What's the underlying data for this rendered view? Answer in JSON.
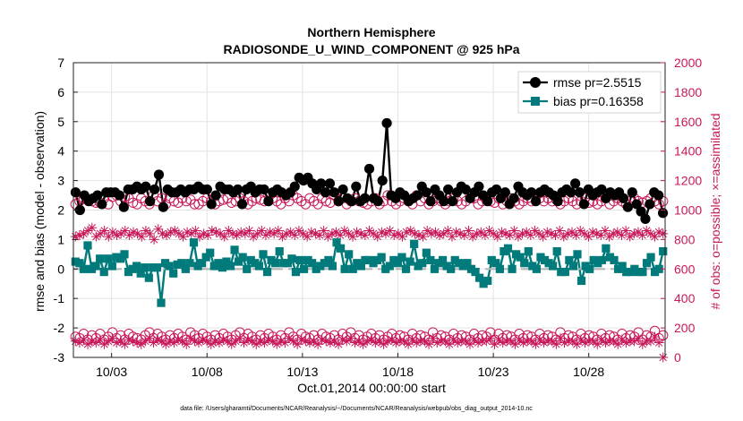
{
  "chart_data": {
    "type": "line",
    "title": "Northern Hemisphere",
    "subtitle": "RADIOSONDE_U_WIND_COMPONENT @ 925 hPa",
    "xlabel": "Oct.01,2014 00:00:00 start",
    "ylabel_left": "rmse and bias (model - observation)",
    "ylabel_right": "# of obs: o=possible; ×=assimilated",
    "footer": "data file: /Users/gharamti/Documents/NCAR/Reanalysis/~/Documents/NCAR/Reanalysis/webpub/obs_diag_output_2014-10.nc",
    "x_tick_labels": [
      "10/03",
      "10/08",
      "10/13",
      "10/18",
      "10/23",
      "10/28"
    ],
    "x_tick_days": [
      3,
      8,
      13,
      18,
      23,
      28
    ],
    "xlim_days": [
      1,
      32
    ],
    "ylim_left": [
      -3,
      7
    ],
    "y_left_ticks": [
      -3,
      -2,
      -1,
      0,
      1,
      2,
      3,
      4,
      5,
      6,
      7
    ],
    "ylim_right": [
      0,
      2000
    ],
    "y_right_ticks": [
      0,
      200,
      400,
      600,
      800,
      1000,
      1200,
      1400,
      1600,
      1800,
      2000
    ],
    "grid": true,
    "legend_position": "top-right",
    "series": [
      {
        "name": "rmse pr=2.5515",
        "axis": "left",
        "color": "#000000",
        "marker": "circle",
        "values": [
          2.6,
          2.0,
          2.5,
          2.3,
          2.4,
          2.5,
          2.2,
          2.6,
          2.6,
          2.6,
          2.5,
          2.1,
          2.7,
          2.7,
          2.8,
          2.7,
          2.8,
          2.3,
          2.7,
          3.2,
          2.1,
          2.7,
          2.6,
          2.6,
          2.7,
          2.6,
          2.7,
          2.7,
          2.8,
          2.7,
          2.7,
          2.2,
          2.5,
          2.8,
          2.7,
          2.7,
          2.6,
          2.7,
          2.2,
          2.7,
          2.8,
          2.6,
          2.7,
          2.7,
          2.3,
          2.6,
          2.7,
          2.6,
          2.5,
          2.6,
          2.8,
          3.1,
          3.0,
          3.1,
          2.9,
          2.7,
          2.9,
          2.6,
          2.9,
          2.6,
          2.3,
          2.7,
          2.4,
          2.3,
          2.8,
          2.3,
          2.4,
          3.4,
          2.4,
          2.3,
          3.0,
          4.95,
          2.5,
          2.4,
          2.6,
          2.5,
          2.3,
          2.4,
          2.5,
          2.8,
          2.6,
          2.3,
          2.7,
          2.5,
          2.3,
          2.7,
          2.3,
          2.6,
          2.8,
          2.7,
          2.4,
          2.6,
          2.8,
          2.5,
          2.3,
          2.6,
          2.7,
          2.4,
          2.6,
          2.2,
          2.4,
          2.8,
          2.6,
          2.5,
          2.6,
          2.3,
          2.6,
          2.7,
          2.6,
          2.5,
          2.3,
          2.6,
          2.7,
          2.6,
          2.9,
          2.6,
          2.2,
          2.7,
          2.5,
          2.6,
          2.7,
          2.4,
          2.6,
          2.5,
          2.6,
          2.4,
          2.1,
          2.6,
          2.2,
          1.95,
          1.7,
          2.2,
          2.6,
          2.5,
          1.9
        ]
      },
      {
        "name": "bias pr=0.16358",
        "axis": "left",
        "color": "#007a7a",
        "marker": "square",
        "values": [
          0.25,
          0.2,
          0.0,
          0.8,
          0.0,
          0.1,
          0.35,
          -0.1,
          0.35,
          0.1,
          0.4,
          0.35,
          0.5,
          -0.1,
          0.0,
          0.1,
          -0.15,
          0.05,
          -0.3,
          0.05,
          0.05,
          -1.15,
          0.2,
          0.1,
          -0.15,
          0.15,
          0.2,
          0.0,
          0.2,
          0.9,
          0.1,
          0.2,
          0.4,
          0.55,
          0.1,
          0.2,
          0.05,
          0.25,
          0.1,
          0.65,
          0.25,
          0.4,
          0.0,
          0.3,
          0.2,
          0.1,
          0.5,
          -0.1,
          0.3,
          0.2,
          0.6,
          0.2,
          0.2,
          0.35,
          -0.1,
          0.3,
          0.0,
          0.3,
          0.2,
          0.0,
          0.1,
          0.2,
          0.3,
          0.1,
          0.9,
          0.7,
          0.0,
          0.5,
          0.0,
          0.2,
          0.1,
          0.3,
          0.3,
          0.2,
          0.3,
          0.4,
          0.0,
          0.1,
          0.3,
          0.2,
          0.4,
          0.0,
          0.25,
          0.85,
          0.1,
          0.2,
          0.55,
          0.3,
          0.0,
          0.2,
          0.3,
          0.1,
          0.0,
          0.3,
          0.2,
          0.1,
          0.2,
          0.0,
          -0.1,
          -0.3,
          -0.5,
          -0.4,
          0.3,
          0.2,
          0.0,
          0.6,
          0.7,
          0.0,
          0.5,
          0.4,
          0.2,
          0.6,
          0.1,
          0.0,
          0.4,
          0.3,
          0.2,
          0.1,
          0.6,
          -0.1,
          -0.1,
          0.3,
          0.1,
          0.5,
          -0.4,
          0.1,
          0.0,
          0.3,
          0.2,
          0.3,
          0.7,
          0.4,
          0.3,
          0.0,
          0.1,
          -0.1,
          -0.1,
          0.0,
          -0.1,
          -0.1,
          0.2,
          0.4,
          -0.1,
          0.0,
          0.6
        ]
      },
      {
        "name": "possible (rmse)",
        "axis": "right",
        "color": "#c8185a",
        "marker": "open-circle",
        "values": [
          1040,
          1060,
          1080,
          1070,
          1060,
          1050,
          1050,
          1080,
          1040,
          1090,
          1100,
          1060,
          1090,
          1080,
          1050,
          1040,
          1080,
          1060,
          1040,
          1100,
          1060,
          1080,
          1040,
          1080,
          1060,
          1050,
          1080,
          1060,
          1070,
          1040,
          1040,
          1060,
          1080,
          1060,
          1040,
          1060,
          1070,
          1080,
          1050,
          1060,
          1080,
          1060,
          1040,
          1060,
          1080,
          1070,
          1060,
          1100,
          1080,
          1060,
          1040,
          1080,
          1060,
          1100,
          1080,
          1060,
          1040,
          1080,
          1060,
          1040,
          1080,
          1060,
          1050,
          1100,
          1060,
          1080,
          1040,
          1060,
          1080,
          1060,
          1050,
          1040,
          1060,
          1080,
          1040,
          1060,
          1100,
          1060,
          1040,
          1060,
          1080,
          1060,
          1040,
          1100,
          1060,
          1080,
          1040,
          1060,
          1080,
          1060,
          1040,
          1060,
          1080,
          1060,
          1040,
          1060,
          1100,
          1080,
          1040,
          1060,
          1080,
          1060,
          1050,
          1080,
          1040,
          1060,
          1080,
          1060,
          1040,
          1060,
          1080,
          1060,
          1100,
          1080,
          1060,
          1080,
          1060,
          1070,
          1040,
          1060,
          1080,
          1060,
          1040,
          1060,
          1080,
          1050,
          1060,
          1040,
          1060,
          1080,
          1040,
          1060,
          1080,
          1060,
          1040,
          1060,
          1080,
          1060,
          1050,
          1060,
          1080,
          1060,
          1040,
          1060
        ]
      },
      {
        "name": "assimilated (rmse)",
        "axis": "right",
        "color": "#c8185a",
        "marker": "star",
        "values": [
          820,
          830,
          840,
          860,
          880,
          820,
          840,
          860,
          820,
          850,
          830,
          840,
          860,
          830,
          850,
          840,
          820,
          860,
          840,
          800,
          870,
          840,
          830,
          850,
          860,
          840,
          820,
          850,
          840,
          860,
          820,
          840,
          830,
          860,
          850,
          840,
          820,
          860,
          840,
          830,
          850,
          840,
          860,
          820,
          840,
          860,
          830,
          850,
          840,
          860,
          820,
          840,
          850,
          830,
          860,
          840,
          820,
          850,
          840,
          830,
          860,
          820,
          840,
          850,
          830,
          860,
          840,
          820,
          850,
          840,
          830,
          860,
          840,
          820,
          850,
          840,
          860,
          830,
          840,
          820,
          850,
          860,
          840,
          830,
          820,
          860,
          840,
          850,
          830,
          840,
          860,
          820,
          850,
          840,
          830,
          860,
          820,
          840,
          850,
          830,
          860,
          840,
          820,
          850,
          840,
          830,
          860,
          820,
          840,
          850,
          830,
          860,
          840,
          820,
          850,
          840,
          830,
          860,
          820,
          840,
          850,
          830,
          860,
          840,
          820,
          850,
          840,
          830,
          860,
          820,
          840,
          850,
          830,
          860,
          820,
          840,
          850,
          830,
          860,
          840,
          820,
          850,
          840
        ]
      },
      {
        "name": "possible (bias)",
        "axis": "right",
        "color": "#c8185a",
        "marker": "open-circle",
        "values": [
          140,
          130,
          160,
          120,
          150,
          130,
          160,
          120,
          140,
          170,
          130,
          150,
          120,
          160,
          140,
          130,
          120,
          150,
          170,
          130,
          160,
          140,
          120,
          150,
          130,
          160,
          140,
          120,
          170,
          150,
          130,
          160,
          140,
          120,
          150,
          130,
          160,
          140,
          120,
          150,
          170,
          130,
          160,
          140,
          120,
          150,
          130,
          160,
          140,
          120,
          150,
          130,
          170,
          140,
          120,
          160,
          140,
          130,
          150,
          120,
          160,
          140,
          130,
          150,
          120,
          160,
          140,
          170,
          130,
          150,
          120,
          140,
          160,
          130,
          150,
          120,
          140,
          160,
          130,
          150,
          140,
          120,
          160,
          130,
          150,
          140,
          120,
          170,
          130,
          150,
          140,
          120,
          160,
          130,
          150,
          140,
          120,
          160,
          130,
          150,
          140,
          170,
          120,
          160,
          130,
          150,
          140,
          120,
          160,
          130,
          150,
          140,
          120,
          160,
          130,
          150,
          140,
          120,
          170,
          130,
          150,
          140,
          120,
          160,
          130,
          150,
          140,
          120,
          160,
          130,
          150,
          140,
          120,
          160,
          130,
          150,
          140,
          170,
          120,
          150,
          140,
          180,
          130,
          150
        ]
      },
      {
        "name": "assimilated (bias)",
        "axis": "right",
        "color": "#c8185a",
        "marker": "star",
        "values": [
          110,
          100,
          120,
          90,
          110,
          100,
          120,
          90,
          110,
          130,
          100,
          110,
          90,
          120,
          110,
          100,
          90,
          110,
          130,
          100,
          120,
          110,
          90,
          110,
          100,
          120,
          110,
          90,
          130,
          110,
          100,
          120,
          110,
          90,
          110,
          100,
          120,
          110,
          90,
          110,
          130,
          100,
          120,
          110,
          90,
          110,
          100,
          120,
          110,
          90,
          110,
          100,
          130,
          110,
          90,
          120,
          110,
          100,
          110,
          90,
          120,
          110,
          100,
          110,
          90,
          120,
          110,
          130,
          100,
          110,
          90,
          110,
          120,
          100,
          110,
          90,
          110,
          120,
          100,
          110,
          110,
          90,
          120,
          100,
          110,
          110,
          90,
          130,
          100,
          110,
          110,
          90,
          120,
          100,
          110,
          110,
          90,
          120,
          100,
          110,
          110,
          130,
          90,
          120,
          100,
          110,
          110,
          90,
          120,
          100,
          110,
          110,
          90,
          120,
          100,
          110,
          110,
          90,
          130,
          100,
          110,
          110,
          90,
          120,
          100,
          110,
          110,
          90,
          120,
          100,
          110,
          110,
          90,
          120,
          100,
          110,
          110,
          130,
          90,
          110,
          110,
          140,
          100,
          0
        ]
      }
    ]
  }
}
